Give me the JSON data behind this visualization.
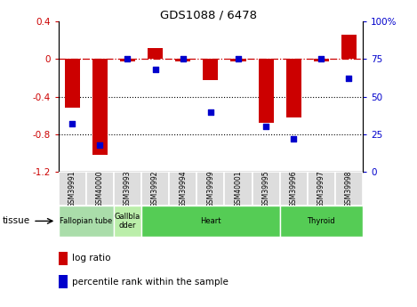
{
  "title": "GDS1088 / 6478",
  "samples": [
    "GSM39991",
    "GSM40000",
    "GSM39993",
    "GSM39992",
    "GSM39994",
    "GSM39999",
    "GSM40001",
    "GSM39995",
    "GSM39996",
    "GSM39997",
    "GSM39998"
  ],
  "log_ratio": [
    -0.52,
    -1.02,
    -0.02,
    0.12,
    -0.02,
    -0.22,
    -0.02,
    -0.68,
    -0.62,
    -0.02,
    0.26
  ],
  "percentile_rank": [
    32,
    18,
    75,
    68,
    75,
    40,
    75,
    30,
    22,
    75,
    62
  ],
  "bar_color": "#cc0000",
  "dot_color": "#0000cc",
  "ylim_left": [
    -1.2,
    0.4
  ],
  "ylim_right": [
    0,
    100
  ],
  "yticks_left": [
    -1.2,
    -0.8,
    -0.4,
    0.0,
    0.4
  ],
  "yticks_right": [
    0,
    25,
    50,
    75,
    100
  ],
  "dotted_lines": [
    -0.4,
    -0.8
  ],
  "tissue_groups": [
    {
      "label": "Fallopian tube",
      "start": 0,
      "end": 2,
      "color": "#aaddaa"
    },
    {
      "label": "Gallbla\ndder",
      "start": 2,
      "end": 3,
      "color": "#cceecc"
    },
    {
      "label": "Heart",
      "start": 3,
      "end": 8,
      "color": "#66cc66"
    },
    {
      "label": "Thyroid",
      "start": 8,
      "end": 11,
      "color": "#66cc66"
    }
  ],
  "legend": [
    {
      "label": "log ratio",
      "color": "#cc0000"
    },
    {
      "label": "percentile rank within the sample",
      "color": "#0000cc"
    }
  ],
  "tissue_label": "tissue"
}
